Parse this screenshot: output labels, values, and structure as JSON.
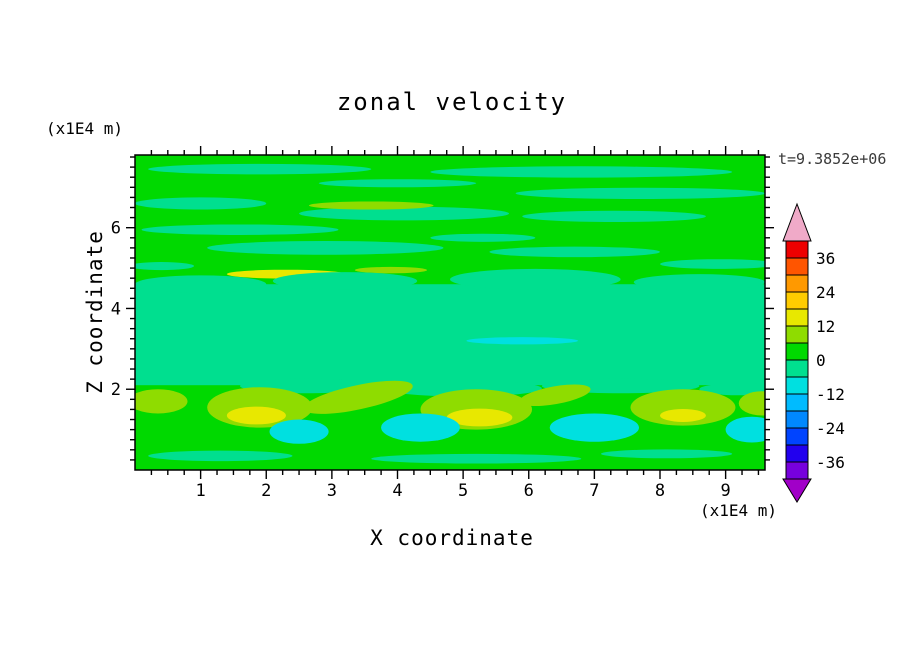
{
  "figure": {
    "title": "zonal velocity",
    "x_axis_label": "X coordinate",
    "y_axis_label": "Z coordinate",
    "x_unit_label": "(x1E4 m)",
    "z_unit_label": "(x1E4 m)",
    "time_label": "t=9.3852e+06"
  },
  "chart_data": {
    "type": "filled_contour",
    "title": "zonal velocity",
    "xlabel": "X coordinate",
    "ylabel": "Z coordinate",
    "x_unit": "(x1E4 m)",
    "z_unit": "(x1E4 m)",
    "annotation": "t=9.3852e+06",
    "xlim": [
      0,
      9.6
    ],
    "zlim": [
      0,
      7.8
    ],
    "x_major_ticks": [
      1,
      2,
      3,
      4,
      5,
      6,
      7,
      8,
      9
    ],
    "z_major_ticks": [
      2,
      4,
      6
    ],
    "x_minor_step": 0.25,
    "z_minor_step": 0.25,
    "contour_interval": 6,
    "colorbar": {
      "min": -42,
      "max": 42,
      "interval": 6,
      "tick_labels": [
        36,
        24,
        12,
        0,
        -12,
        -24,
        -36
      ],
      "segment_colors": [
        "#7700dd",
        "#2200ee",
        "#0044ff",
        "#0088ff",
        "#00bbff",
        "#00e0e0",
        "#00df8f",
        "#00d900",
        "#8fdc00",
        "#e8e800",
        "#ffcc00",
        "#ff9900",
        "#ff5500",
        "#ee0000"
      ],
      "below_color": "#a100c8",
      "above_color": "#f0aac8"
    },
    "levels_palette": {
      "cyan": "#00e0e0",
      "spring": "#00df8f",
      "green": "#00d900",
      "ygreen": "#8fdc00",
      "yellow": "#e8e800"
    },
    "level_value_ranges": {
      "cyan": [
        -12,
        -6
      ],
      "spring": [
        -6,
        0
      ],
      "green": [
        0,
        6
      ],
      "ygreen": [
        6,
        12
      ],
      "yellow": [
        12,
        18
      ]
    },
    "background_level": "green",
    "band": {
      "z0": 2.1,
      "z1": 4.6,
      "level": "spring"
    },
    "features_format": "[x_center, z_center, x_radius, z_radius, level, rotation_deg]",
    "features": [
      [
        1.9,
        7.45,
        1.7,
        0.13,
        "spring",
        0
      ],
      [
        6.8,
        7.38,
        2.3,
        0.14,
        "spring",
        0
      ],
      [
        4.0,
        7.1,
        1.2,
        0.1,
        "spring",
        0
      ],
      [
        7.7,
        6.85,
        1.9,
        0.14,
        "spring",
        0
      ],
      [
        1.0,
        6.6,
        1.0,
        0.15,
        "spring",
        0
      ],
      [
        4.1,
        6.35,
        1.6,
        0.17,
        "spring",
        0
      ],
      [
        7.3,
        6.28,
        1.4,
        0.14,
        "spring",
        0
      ],
      [
        1.6,
        5.95,
        1.5,
        0.13,
        "spring",
        0
      ],
      [
        2.9,
        5.5,
        1.8,
        0.17,
        "spring",
        0
      ],
      [
        5.3,
        5.75,
        0.8,
        0.1,
        "spring",
        0
      ],
      [
        6.7,
        5.4,
        1.3,
        0.13,
        "spring",
        0
      ],
      [
        8.9,
        5.1,
        0.9,
        0.12,
        "spring",
        0
      ],
      [
        0.4,
        5.05,
        0.5,
        0.1,
        "spring",
        0
      ],
      [
        3.6,
        6.55,
        0.95,
        0.1,
        "ygreen",
        0
      ],
      [
        2.3,
        4.85,
        0.9,
        0.11,
        "yellow",
        0
      ],
      [
        3.9,
        4.95,
        0.55,
        0.08,
        "ygreen",
        0
      ],
      [
        1.0,
        4.6,
        1.0,
        0.22,
        "spring",
        0
      ],
      [
        3.2,
        4.68,
        1.1,
        0.22,
        "spring",
        0
      ],
      [
        6.1,
        4.72,
        1.3,
        0.26,
        "spring",
        0
      ],
      [
        8.6,
        4.65,
        1.0,
        0.2,
        "spring",
        0
      ],
      [
        2.6,
        2.08,
        1.0,
        0.18,
        "spring",
        0
      ],
      [
        5.0,
        2.02,
        1.2,
        0.2,
        "spring",
        0
      ],
      [
        7.4,
        2.08,
        1.2,
        0.18,
        "spring",
        0
      ],
      [
        9.2,
        2.0,
        0.6,
        0.15,
        "spring",
        0
      ],
      [
        5.9,
        3.2,
        0.85,
        0.09,
        "cyan",
        0
      ],
      [
        0.35,
        1.7,
        0.45,
        0.3,
        "ygreen",
        0
      ],
      [
        1.9,
        1.55,
        0.8,
        0.5,
        "ygreen",
        0
      ],
      [
        3.4,
        1.8,
        0.85,
        0.3,
        "ygreen",
        -12
      ],
      [
        5.2,
        1.5,
        0.85,
        0.5,
        "ygreen",
        0
      ],
      [
        6.4,
        1.85,
        0.55,
        0.22,
        "ygreen",
        -10
      ],
      [
        8.35,
        1.55,
        0.8,
        0.45,
        "ygreen",
        0
      ],
      [
        9.55,
        1.65,
        0.35,
        0.3,
        "ygreen",
        0
      ],
      [
        1.85,
        1.35,
        0.45,
        0.22,
        "yellow",
        0
      ],
      [
        5.25,
        1.3,
        0.5,
        0.22,
        "yellow",
        0
      ],
      [
        8.35,
        1.35,
        0.35,
        0.16,
        "yellow",
        0
      ],
      [
        2.5,
        0.95,
        0.45,
        0.3,
        "cyan",
        0
      ],
      [
        4.35,
        1.05,
        0.6,
        0.35,
        "cyan",
        0
      ],
      [
        7.0,
        1.05,
        0.68,
        0.35,
        "cyan",
        0
      ],
      [
        9.4,
        1.0,
        0.4,
        0.32,
        "cyan",
        0
      ],
      [
        1.3,
        0.35,
        1.1,
        0.13,
        "spring",
        0
      ],
      [
        5.2,
        0.28,
        1.6,
        0.12,
        "spring",
        0
      ],
      [
        8.1,
        0.4,
        1.0,
        0.11,
        "spring",
        0
      ]
    ]
  }
}
